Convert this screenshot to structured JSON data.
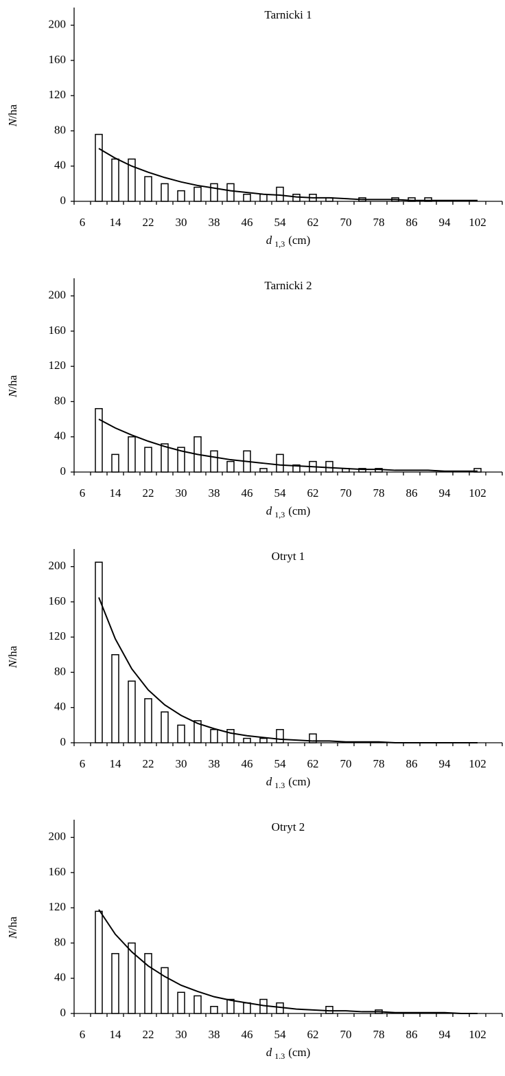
{
  "chart_data": [
    {
      "type": "bar",
      "title": "Tarnicki 1",
      "y_label_symbol": "N",
      "y_label_unit": "/ha",
      "x_label_symbol": "d",
      "x_label_subscript": "1,3",
      "x_label_unit": "(cm)",
      "categories": [
        "6",
        null,
        "14",
        null,
        "22",
        null,
        "30",
        null,
        "38",
        null,
        "46",
        null,
        "54",
        null,
        "62",
        null,
        "70",
        null,
        "78",
        null,
        "86",
        null,
        "94",
        null,
        "102",
        null
      ],
      "ylim": [
        0,
        220
      ],
      "yticks": [
        0,
        40,
        80,
        120,
        160,
        200
      ],
      "series": [
        {
          "type": "bar",
          "color": "#ffffff",
          "values": [
            0,
            76,
            48,
            48,
            28,
            20,
            12,
            16,
            20,
            20,
            8,
            8,
            16,
            8,
            8,
            4,
            0,
            4,
            0,
            4,
            4,
            4,
            0,
            0,
            0,
            0
          ]
        },
        {
          "type": "line",
          "color": "#000000",
          "values": [
            null,
            60,
            49,
            40,
            33,
            27,
            22,
            18,
            15,
            12,
            10,
            8,
            7,
            5,
            4,
            4,
            3,
            2,
            2,
            2,
            1,
            1,
            1,
            1,
            1,
            null
          ]
        }
      ]
    },
    {
      "type": "bar",
      "title": "Tarnicki 2",
      "y_label_symbol": "N",
      "y_label_unit": "/ha",
      "x_label_symbol": "d",
      "x_label_subscript": "1,3",
      "x_label_unit": "(cm)",
      "categories": [
        "6",
        null,
        "14",
        null,
        "22",
        null,
        "30",
        null,
        "38",
        null,
        "46",
        null,
        "54",
        null,
        "62",
        null,
        "70",
        null,
        "78",
        null,
        "86",
        null,
        "94",
        null,
        "102",
        null
      ],
      "ylim": [
        0,
        220
      ],
      "yticks": [
        0,
        40,
        80,
        120,
        160,
        200
      ],
      "series": [
        {
          "type": "bar",
          "color": "#ffffff",
          "values": [
            0,
            72,
            20,
            40,
            28,
            32,
            28,
            40,
            24,
            12,
            24,
            4,
            20,
            8,
            12,
            12,
            4,
            4,
            4,
            0,
            0,
            0,
            0,
            0,
            4,
            0
          ]
        },
        {
          "type": "line",
          "color": "#000000",
          "values": [
            null,
            60,
            50,
            42,
            35,
            29,
            24,
            20,
            17,
            14,
            12,
            10,
            8,
            7,
            6,
            5,
            4,
            3,
            3,
            2,
            2,
            2,
            1,
            1,
            1,
            null
          ]
        }
      ]
    },
    {
      "type": "bar",
      "title": "Otryt 1",
      "y_label_symbol": "N",
      "y_label_unit": "/ha",
      "x_label_symbol": "d",
      "x_label_subscript": "1.3",
      "x_label_unit": "(cm)",
      "categories": [
        "6",
        null,
        "14",
        null,
        "22",
        null,
        "30",
        null,
        "38",
        null,
        "46",
        null,
        "54",
        null,
        "62",
        null,
        "70",
        null,
        "78",
        null,
        "86",
        null,
        "94",
        null,
        "102",
        null
      ],
      "ylim": [
        0,
        220
      ],
      "yticks": [
        0,
        40,
        80,
        120,
        160,
        200
      ],
      "series": [
        {
          "type": "bar",
          "color": "#ffffff",
          "values": [
            0,
            205,
            100,
            70,
            50,
            35,
            20,
            25,
            15,
            15,
            5,
            5,
            15,
            0,
            10,
            0,
            0,
            0,
            0,
            0,
            0,
            0,
            0,
            0,
            0,
            0
          ]
        },
        {
          "type": "line",
          "color": "#000000",
          "values": [
            null,
            165,
            118,
            84,
            60,
            43,
            31,
            22,
            16,
            11,
            8,
            6,
            4,
            3,
            2,
            2,
            1,
            1,
            1,
            0,
            0,
            0,
            0,
            0,
            0,
            null
          ]
        }
      ]
    },
    {
      "type": "bar",
      "title": "Otryt 2",
      "y_label_symbol": "N",
      "y_label_unit": "/ha",
      "x_label_symbol": "d",
      "x_label_subscript": "1.3",
      "x_label_unit": "(cm)",
      "categories": [
        "6",
        null,
        "14",
        null,
        "22",
        null,
        "30",
        null,
        "38",
        null,
        "46",
        null,
        "54",
        null,
        "62",
        null,
        "70",
        null,
        "78",
        null,
        "86",
        null,
        "94",
        null,
        "102",
        null
      ],
      "ylim": [
        0,
        220
      ],
      "yticks": [
        0,
        40,
        80,
        120,
        160,
        200
      ],
      "series": [
        {
          "type": "bar",
          "color": "#ffffff",
          "values": [
            0,
            116,
            68,
            80,
            68,
            52,
            24,
            20,
            8,
            16,
            12,
            16,
            12,
            0,
            0,
            8,
            0,
            0,
            4,
            0,
            0,
            0,
            0,
            0,
            0,
            0
          ]
        },
        {
          "type": "line",
          "color": "#000000",
          "values": [
            null,
            118,
            90,
            70,
            54,
            42,
            32,
            25,
            19,
            15,
            12,
            9,
            7,
            5,
            4,
            3,
            3,
            2,
            2,
            1,
            1,
            1,
            1,
            0,
            0,
            null
          ]
        }
      ]
    }
  ]
}
